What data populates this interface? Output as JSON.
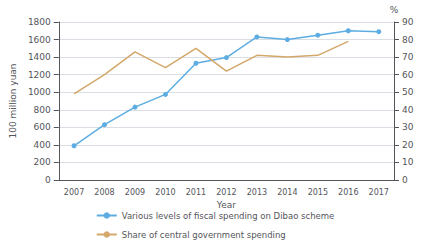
{
  "chart_data": {
    "type": "line",
    "xlabel": "Year",
    "ylabel": "100 million yuan",
    "y2label": "%",
    "categories": [
      "2007",
      "2008",
      "2009",
      "2010",
      "2011",
      "2012",
      "2013",
      "2014",
      "2015",
      "2016",
      "2017"
    ],
    "series": [
      {
        "name": "Various levels of fiscal spending on Dibao scheme",
        "color": "#5DADE2",
        "marker": "circle",
        "axis": "y",
        "values": [
          390,
          630,
          830,
          975,
          1330,
          1395,
          1630,
          1600,
          1650,
          1700,
          1690
        ]
      },
      {
        "name": "Share of central government spending",
        "color": "#D4A76A",
        "marker": "none",
        "axis": "y2",
        "values": [
          49,
          60,
          73,
          64,
          75,
          62,
          71,
          70,
          71,
          79,
          null
        ]
      }
    ],
    "ylim": [
      0,
      1800
    ],
    "yticks": [
      0,
      200,
      400,
      600,
      800,
      1000,
      1200,
      1400,
      1600,
      1800
    ],
    "y2lim": [
      0,
      90
    ],
    "y2ticks": [
      0,
      10,
      20,
      30,
      40,
      50,
      60,
      70,
      80,
      90
    ],
    "grid": true,
    "legend": "bottom"
  }
}
